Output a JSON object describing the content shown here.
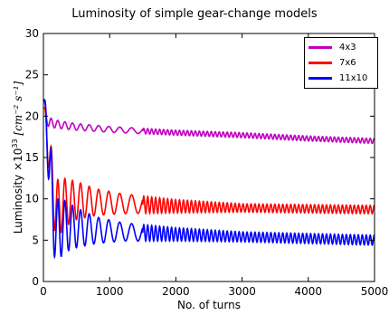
{
  "chart_data": {
    "type": "line",
    "title": "Luminosity of simple gear-change models",
    "xlabel": "No. of turns",
    "ylabel": "Luminosity",
    "ylabel_scale": "×10",
    "ylabel_exponent": "33",
    "ylabel_unit": "[cm⁻² s⁻¹]",
    "xlim": [
      0,
      5000
    ],
    "ylim": [
      0,
      30
    ],
    "xticks": [
      "0",
      "1000",
      "2000",
      "3000",
      "4000",
      "5000"
    ],
    "yticks": [
      "0",
      "5",
      "10",
      "15",
      "20",
      "25",
      "30"
    ],
    "grid": false,
    "legend_position": "top-right",
    "series": [
      {
        "name": "4x3",
        "color": "#c000c0",
        "x": [
          0,
          40,
          80,
          150,
          300,
          500,
          1000,
          2000,
          3000,
          4000,
          5000
        ],
        "center": [
          22,
          20,
          19.3,
          19.1,
          18.9,
          18.7,
          18.4,
          18.0,
          17.7,
          17.3,
          17.0
        ],
        "band": [
          0.4,
          0.9,
          0.6,
          0.5,
          0.45,
          0.4,
          0.35,
          0.3,
          0.3,
          0.3,
          0.3
        ]
      },
      {
        "name": "7x6",
        "color": "#ff0000",
        "x": [
          0,
          40,
          100,
          150,
          200,
          300,
          500,
          800,
          1200,
          2000,
          3000,
          4000,
          5000
        ],
        "center": [
          21,
          19,
          14,
          11,
          8.5,
          9.5,
          9.8,
          9.6,
          9.4,
          9.1,
          8.9,
          8.8,
          8.7
        ],
        "band": [
          0.5,
          1.5,
          3,
          4,
          3.8,
          3,
          2.3,
          1.6,
          1.2,
          0.8,
          0.5,
          0.5,
          0.5
        ]
      },
      {
        "name": "11x10",
        "color": "#0000ff",
        "x": [
          0,
          40,
          100,
          150,
          200,
          300,
          500,
          800,
          1200,
          2000,
          3000,
          4000,
          5000
        ],
        "center": [
          22,
          19.5,
          13,
          8,
          6,
          6.7,
          6.5,
          6.2,
          6.0,
          5.7,
          5.4,
          5.2,
          5.0
        ],
        "band": [
          0.5,
          2,
          4.5,
          4.5,
          4,
          3.2,
          2.4,
          1.6,
          1.1,
          0.8,
          0.6,
          0.6,
          0.6
        ]
      }
    ]
  }
}
